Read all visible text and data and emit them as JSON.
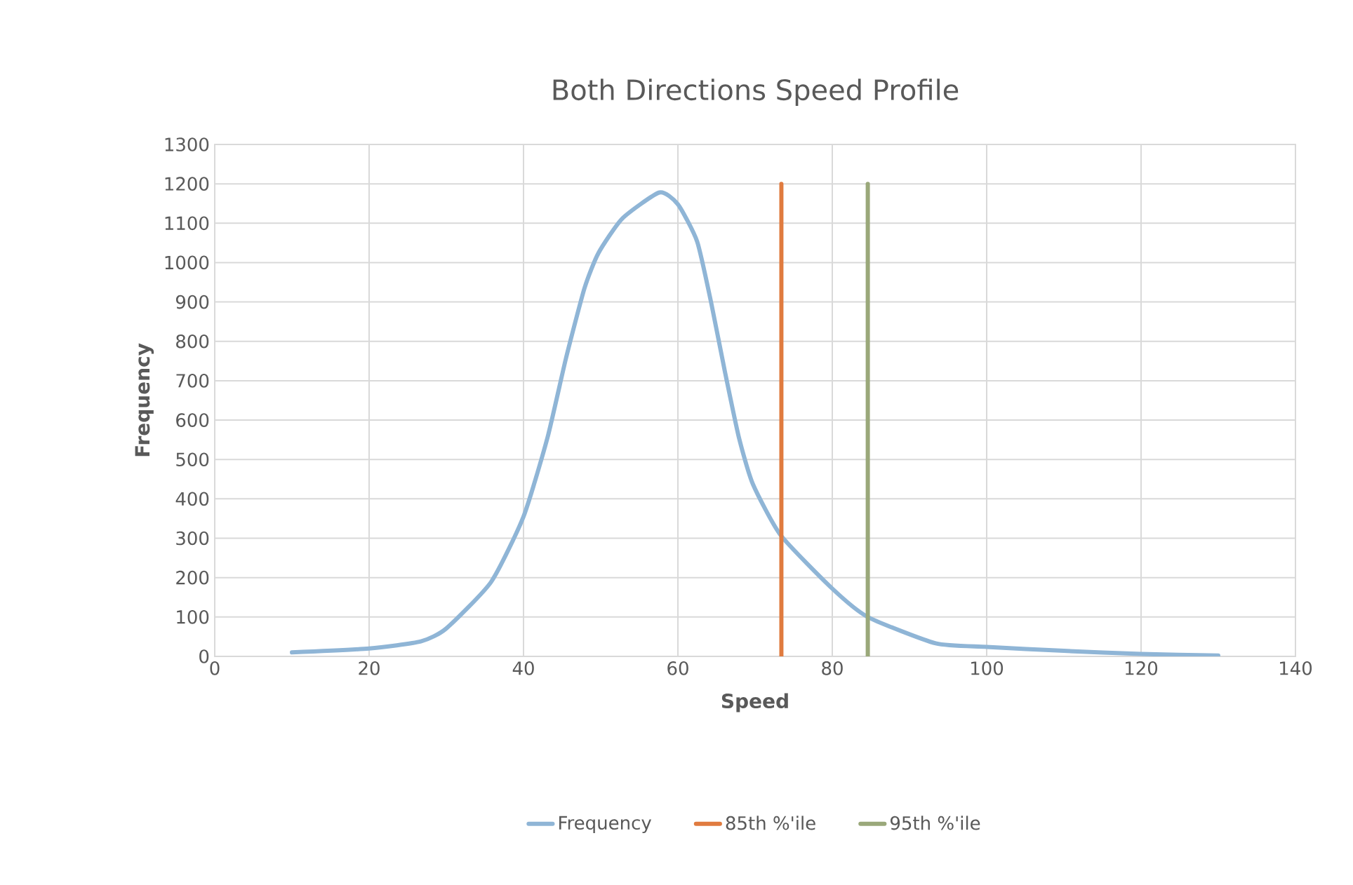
{
  "chart_data": {
    "type": "line",
    "title": "Both Directions Speed Profile",
    "xlabel": "Speed",
    "ylabel": "Frequency",
    "xlim": [
      0,
      140
    ],
    "xticks": [
      0,
      20,
      40,
      60,
      80,
      100,
      120,
      140
    ],
    "ylim": [
      0,
      1300
    ],
    "yticks": [
      0,
      100,
      200,
      300,
      400,
      500,
      600,
      700,
      800,
      900,
      1000,
      1100,
      1200,
      1300
    ],
    "grid": true,
    "legend": "bottom",
    "series": [
      {
        "name": "Frequency",
        "color": "#8fb5d6",
        "x": [
          10,
          20,
          26.7,
          30,
          35.8,
          40,
          43.1,
          45.5,
          47.9,
          49.7,
          52.8,
          57.6,
          60,
          62.5,
          64.3,
          66.1,
          67.9,
          69.7,
          73.3,
          80,
          84.6,
          93.4,
          100,
          110,
          120,
          130
        ],
        "values": [
          10,
          20,
          38,
          71,
          189,
          355,
          555,
          757,
          935,
          1024,
          1112,
          1178,
          1148,
          1053,
          899,
          722,
          556,
          438,
          308,
          172,
          100,
          33,
          24,
          14,
          6,
          2
        ]
      },
      {
        "name": "85th %'ile",
        "color": "#e07b3f",
        "x": [
          73.4,
          73.4
        ],
        "values": [
          0,
          1200
        ]
      },
      {
        "name": "95th %'ile",
        "color": "#9aa87a",
        "x": [
          84.6,
          84.6
        ],
        "values": [
          0,
          1200
        ]
      }
    ]
  }
}
